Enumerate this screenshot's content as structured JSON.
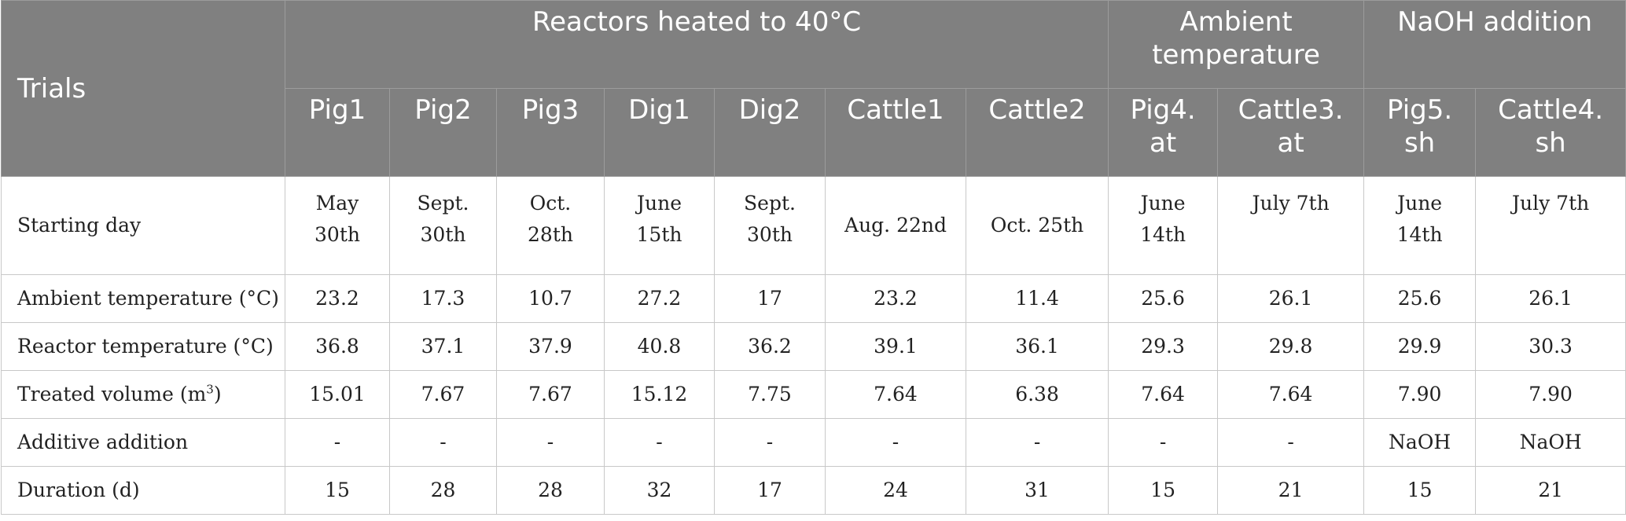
{
  "header": {
    "trials_label": "Trials",
    "groups": [
      {
        "label": "Reactors heated to 40°C"
      },
      {
        "label": "Ambient temperature"
      },
      {
        "label": "NaOH addition"
      }
    ],
    "columns": [
      "Pig1",
      "Pig2",
      "Pig3",
      "Dig1",
      "Dig2",
      "Cattle1",
      "Cattle2",
      "Pig4.\nat",
      "Cattle3.\nat",
      "Pig5.\nsh",
      "Cattle4.\nsh"
    ]
  },
  "rows": [
    {
      "label": "Starting day",
      "cells": [
        "May\n30th",
        "Sept.\n30th",
        "Oct.\n28th",
        "June\n15th",
        "Sept.\n30th",
        "Aug. 22nd",
        "Oct. 25th",
        "June\n14th",
        "July 7th",
        "June\n14th",
        "July 7th"
      ]
    },
    {
      "label": "Ambient temperature (°C)",
      "cells": [
        "23.2",
        "17.3",
        "10.7",
        "27.2",
        "17",
        "23.2",
        "11.4",
        "25.6",
        "26.1",
        "25.6",
        "26.1"
      ]
    },
    {
      "label": "Reactor temperature (°C)",
      "cells": [
        "36.8",
        "37.1",
        "37.9",
        "40.8",
        "36.2",
        "39.1",
        "36.1",
        "29.3",
        "29.8",
        "29.9",
        "30.3"
      ]
    },
    {
      "label": "Treated volume (m",
      "label_sup": "3",
      "label_suffix": ")",
      "cells": [
        "15.01",
        "7.67",
        "7.67",
        "15.12",
        "7.75",
        "7.64",
        "6.38",
        "7.64",
        "7.64",
        "7.90",
        "7.90"
      ]
    },
    {
      "label": "Additive addition",
      "cells": [
        "-",
        "-",
        "-",
        "-",
        "-",
        "-",
        "-",
        "-",
        "-",
        "NaOH",
        "NaOH"
      ]
    },
    {
      "label": "Duration (d)",
      "cells": [
        "15",
        "28",
        "28",
        "32",
        "17",
        "24",
        "31",
        "15",
        "21",
        "15",
        "21"
      ]
    }
  ]
}
